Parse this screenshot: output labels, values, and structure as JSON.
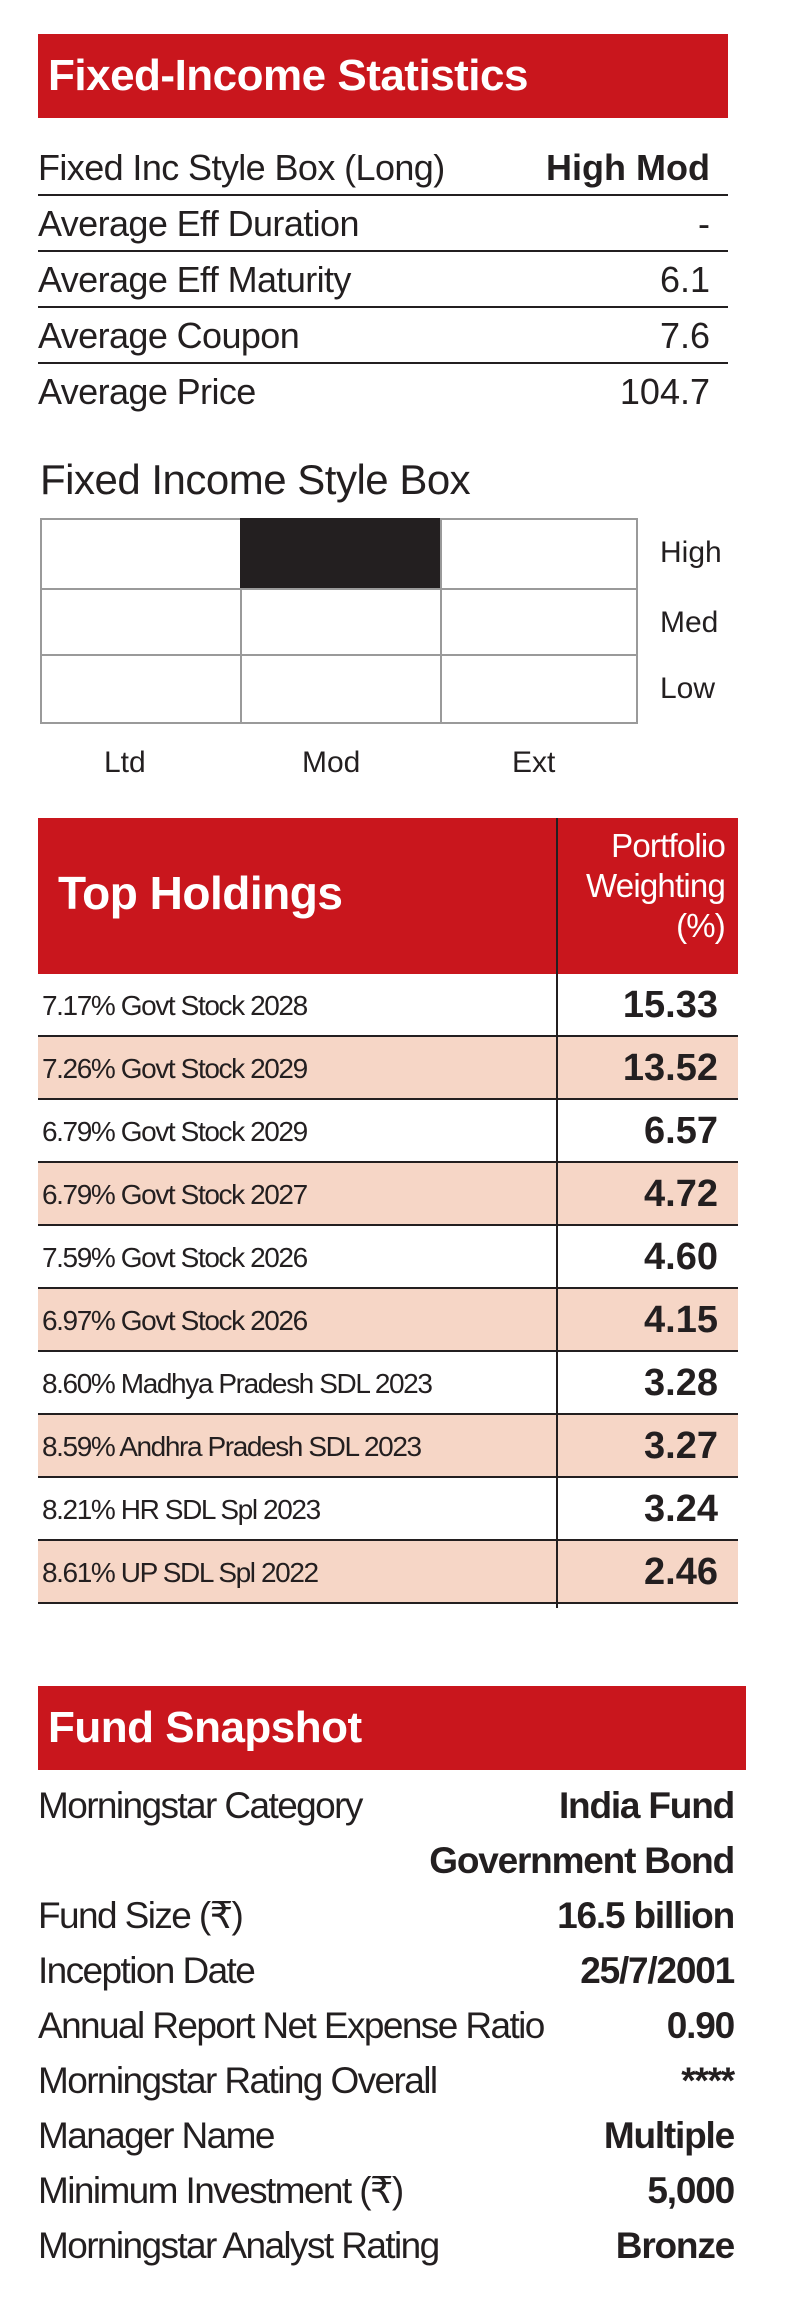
{
  "fixed_income_statistics": {
    "title": "Fixed-Income Statistics",
    "rows": [
      {
        "label": "Fixed Inc Style Box (Long)",
        "value": "High Mod"
      },
      {
        "label": "Average Eff Duration",
        "value": "-"
      },
      {
        "label": "Average Eff Maturity",
        "value": "6.1"
      },
      {
        "label": "Average Coupon",
        "value": "7.6"
      },
      {
        "label": "Average Price",
        "value": "104.7"
      }
    ]
  },
  "style_box": {
    "title": "Fixed Income Style Box",
    "row_labels": [
      "High",
      "Med",
      "Low"
    ],
    "col_labels": [
      "Ltd",
      "Mod",
      "Ext"
    ],
    "highlighted": {
      "row": "High",
      "col": "Mod"
    }
  },
  "top_holdings": {
    "title": "Top Holdings",
    "weight_header": [
      "Portfolio",
      "Weighting",
      "(%)"
    ],
    "rows": [
      {
        "name": "7.17% Govt Stock 2028",
        "weight": "15.33"
      },
      {
        "name": "7.26% Govt Stock 2029",
        "weight": "13.52"
      },
      {
        "name": "6.79% Govt Stock 2029",
        "weight": "6.57"
      },
      {
        "name": "6.79% Govt Stock 2027",
        "weight": "4.72"
      },
      {
        "name": "7.59% Govt Stock 2026",
        "weight": "4.60"
      },
      {
        "name": "6.97% Govt Stock 2026",
        "weight": "4.15"
      },
      {
        "name": "8.60% Madhya Pradesh SDL 2023",
        "weight": "3.28"
      },
      {
        "name": "8.59% Andhra Pradesh SDL 2023",
        "weight": "3.27"
      },
      {
        "name": "8.21% HR SDL Spl 2023",
        "weight": "3.24"
      },
      {
        "name": "8.61% UP SDL Spl 2022",
        "weight": "2.46"
      }
    ]
  },
  "fund_snapshot": {
    "title": "Fund Snapshot",
    "rows": [
      {
        "label": "Morningstar Category",
        "value": "India Fund"
      },
      {
        "label": "",
        "value": "Government Bond"
      },
      {
        "label": "Fund Size (₹)",
        "value": "16.5 billion"
      },
      {
        "label": "Inception Date",
        "value": "25/7/2001"
      },
      {
        "label": "Annual Report Net Expense Ratio",
        "value": "0.90"
      },
      {
        "label": "Morningstar Rating Overall",
        "value": "****"
      },
      {
        "label": "Manager Name",
        "value": "Multiple"
      },
      {
        "label": "Minimum Investment  (₹)",
        "value": "5,000"
      },
      {
        "label": "Morningstar Analyst Rating",
        "value": "Bronze"
      }
    ]
  },
  "colors": {
    "accent": "#c9161d",
    "shade": "#f6d6c6",
    "text": "#231f20"
  }
}
